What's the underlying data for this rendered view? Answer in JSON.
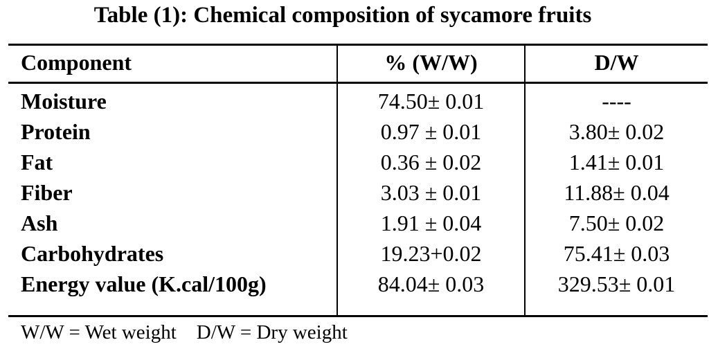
{
  "title": "Table (1): Chemical composition of sycamore fruits",
  "headers": [
    "Component",
    "% (W/W)",
    "D/W"
  ],
  "rows": [
    {
      "component": "Moisture",
      "ww": "74.50± 0.01",
      "dw": "----"
    },
    {
      "component": "Protein",
      "ww": "0.97 ± 0.01",
      "dw": "3.80± 0.02"
    },
    {
      "component": "Fat",
      "ww": "0.36 ± 0.02",
      "dw": "1.41± 0.01"
    },
    {
      "component": "Fiber",
      "ww": "3.03 ± 0.01",
      "dw": "11.88± 0.04"
    },
    {
      "component": "Ash",
      "ww": "1.91 ± 0.04",
      "dw": "7.50± 0.02"
    },
    {
      "component": "Carbohydrates",
      "ww": "19.23+0.02",
      "dw": "75.41± 0.03"
    },
    {
      "component": "Energy value (K.cal/100g)",
      "ww": "84.04± 0.03",
      "dw": "329.53± 0.01"
    }
  ],
  "footnote": "W/W = Wet weight    D/W = Dry weight"
}
